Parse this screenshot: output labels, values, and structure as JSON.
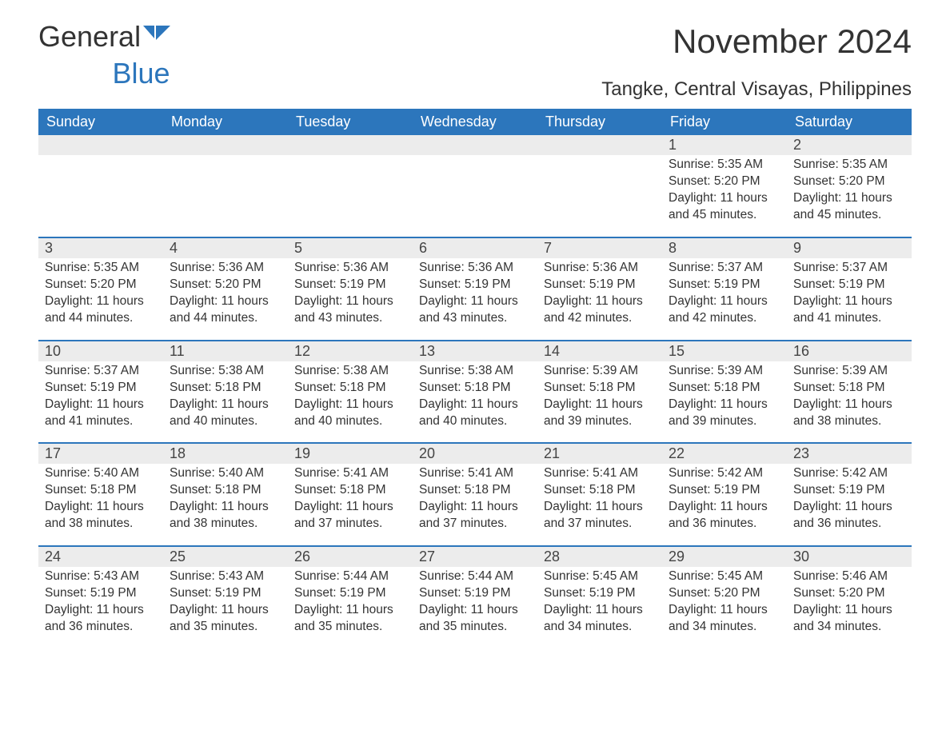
{
  "colors": {
    "header_bg": "#2c76bc",
    "header_text": "#ffffff",
    "daynum_bg": "#ececec",
    "week_border": "#2c76bc",
    "title_color": "#333333",
    "subtitle_color": "#333333",
    "body_text": "#333333",
    "logo_gray": "#333333",
    "logo_blue": "#2c76bc"
  },
  "logo": {
    "word1": "General",
    "word2": "Blue"
  },
  "title": "November 2024",
  "subtitle": "Tangke, Central Visayas, Philippines",
  "weekdays": [
    "Sunday",
    "Monday",
    "Tuesday",
    "Wednesday",
    "Thursday",
    "Friday",
    "Saturday"
  ],
  "weeks": [
    [
      {
        "day": "",
        "sunrise": "",
        "sunset": "",
        "daylight": ""
      },
      {
        "day": "",
        "sunrise": "",
        "sunset": "",
        "daylight": ""
      },
      {
        "day": "",
        "sunrise": "",
        "sunset": "",
        "daylight": ""
      },
      {
        "day": "",
        "sunrise": "",
        "sunset": "",
        "daylight": ""
      },
      {
        "day": "",
        "sunrise": "",
        "sunset": "",
        "daylight": ""
      },
      {
        "day": "1",
        "sunrise": "Sunrise: 5:35 AM",
        "sunset": "Sunset: 5:20 PM",
        "daylight": "Daylight: 11 hours and 45 minutes."
      },
      {
        "day": "2",
        "sunrise": "Sunrise: 5:35 AM",
        "sunset": "Sunset: 5:20 PM",
        "daylight": "Daylight: 11 hours and 45 minutes."
      }
    ],
    [
      {
        "day": "3",
        "sunrise": "Sunrise: 5:35 AM",
        "sunset": "Sunset: 5:20 PM",
        "daylight": "Daylight: 11 hours and 44 minutes."
      },
      {
        "day": "4",
        "sunrise": "Sunrise: 5:36 AM",
        "sunset": "Sunset: 5:20 PM",
        "daylight": "Daylight: 11 hours and 44 minutes."
      },
      {
        "day": "5",
        "sunrise": "Sunrise: 5:36 AM",
        "sunset": "Sunset: 5:19 PM",
        "daylight": "Daylight: 11 hours and 43 minutes."
      },
      {
        "day": "6",
        "sunrise": "Sunrise: 5:36 AM",
        "sunset": "Sunset: 5:19 PM",
        "daylight": "Daylight: 11 hours and 43 minutes."
      },
      {
        "day": "7",
        "sunrise": "Sunrise: 5:36 AM",
        "sunset": "Sunset: 5:19 PM",
        "daylight": "Daylight: 11 hours and 42 minutes."
      },
      {
        "day": "8",
        "sunrise": "Sunrise: 5:37 AM",
        "sunset": "Sunset: 5:19 PM",
        "daylight": "Daylight: 11 hours and 42 minutes."
      },
      {
        "day": "9",
        "sunrise": "Sunrise: 5:37 AM",
        "sunset": "Sunset: 5:19 PM",
        "daylight": "Daylight: 11 hours and 41 minutes."
      }
    ],
    [
      {
        "day": "10",
        "sunrise": "Sunrise: 5:37 AM",
        "sunset": "Sunset: 5:19 PM",
        "daylight": "Daylight: 11 hours and 41 minutes."
      },
      {
        "day": "11",
        "sunrise": "Sunrise: 5:38 AM",
        "sunset": "Sunset: 5:18 PM",
        "daylight": "Daylight: 11 hours and 40 minutes."
      },
      {
        "day": "12",
        "sunrise": "Sunrise: 5:38 AM",
        "sunset": "Sunset: 5:18 PM",
        "daylight": "Daylight: 11 hours and 40 minutes."
      },
      {
        "day": "13",
        "sunrise": "Sunrise: 5:38 AM",
        "sunset": "Sunset: 5:18 PM",
        "daylight": "Daylight: 11 hours and 40 minutes."
      },
      {
        "day": "14",
        "sunrise": "Sunrise: 5:39 AM",
        "sunset": "Sunset: 5:18 PM",
        "daylight": "Daylight: 11 hours and 39 minutes."
      },
      {
        "day": "15",
        "sunrise": "Sunrise: 5:39 AM",
        "sunset": "Sunset: 5:18 PM",
        "daylight": "Daylight: 11 hours and 39 minutes."
      },
      {
        "day": "16",
        "sunrise": "Sunrise: 5:39 AM",
        "sunset": "Sunset: 5:18 PM",
        "daylight": "Daylight: 11 hours and 38 minutes."
      }
    ],
    [
      {
        "day": "17",
        "sunrise": "Sunrise: 5:40 AM",
        "sunset": "Sunset: 5:18 PM",
        "daylight": "Daylight: 11 hours and 38 minutes."
      },
      {
        "day": "18",
        "sunrise": "Sunrise: 5:40 AM",
        "sunset": "Sunset: 5:18 PM",
        "daylight": "Daylight: 11 hours and 38 minutes."
      },
      {
        "day": "19",
        "sunrise": "Sunrise: 5:41 AM",
        "sunset": "Sunset: 5:18 PM",
        "daylight": "Daylight: 11 hours and 37 minutes."
      },
      {
        "day": "20",
        "sunrise": "Sunrise: 5:41 AM",
        "sunset": "Sunset: 5:18 PM",
        "daylight": "Daylight: 11 hours and 37 minutes."
      },
      {
        "day": "21",
        "sunrise": "Sunrise: 5:41 AM",
        "sunset": "Sunset: 5:18 PM",
        "daylight": "Daylight: 11 hours and 37 minutes."
      },
      {
        "day": "22",
        "sunrise": "Sunrise: 5:42 AM",
        "sunset": "Sunset: 5:19 PM",
        "daylight": "Daylight: 11 hours and 36 minutes."
      },
      {
        "day": "23",
        "sunrise": "Sunrise: 5:42 AM",
        "sunset": "Sunset: 5:19 PM",
        "daylight": "Daylight: 11 hours and 36 minutes."
      }
    ],
    [
      {
        "day": "24",
        "sunrise": "Sunrise: 5:43 AM",
        "sunset": "Sunset: 5:19 PM",
        "daylight": "Daylight: 11 hours and 36 minutes."
      },
      {
        "day": "25",
        "sunrise": "Sunrise: 5:43 AM",
        "sunset": "Sunset: 5:19 PM",
        "daylight": "Daylight: 11 hours and 35 minutes."
      },
      {
        "day": "26",
        "sunrise": "Sunrise: 5:44 AM",
        "sunset": "Sunset: 5:19 PM",
        "daylight": "Daylight: 11 hours and 35 minutes."
      },
      {
        "day": "27",
        "sunrise": "Sunrise: 5:44 AM",
        "sunset": "Sunset: 5:19 PM",
        "daylight": "Daylight: 11 hours and 35 minutes."
      },
      {
        "day": "28",
        "sunrise": "Sunrise: 5:45 AM",
        "sunset": "Sunset: 5:19 PM",
        "daylight": "Daylight: 11 hours and 34 minutes."
      },
      {
        "day": "29",
        "sunrise": "Sunrise: 5:45 AM",
        "sunset": "Sunset: 5:20 PM",
        "daylight": "Daylight: 11 hours and 34 minutes."
      },
      {
        "day": "30",
        "sunrise": "Sunrise: 5:46 AM",
        "sunset": "Sunset: 5:20 PM",
        "daylight": "Daylight: 11 hours and 34 minutes."
      }
    ]
  ]
}
